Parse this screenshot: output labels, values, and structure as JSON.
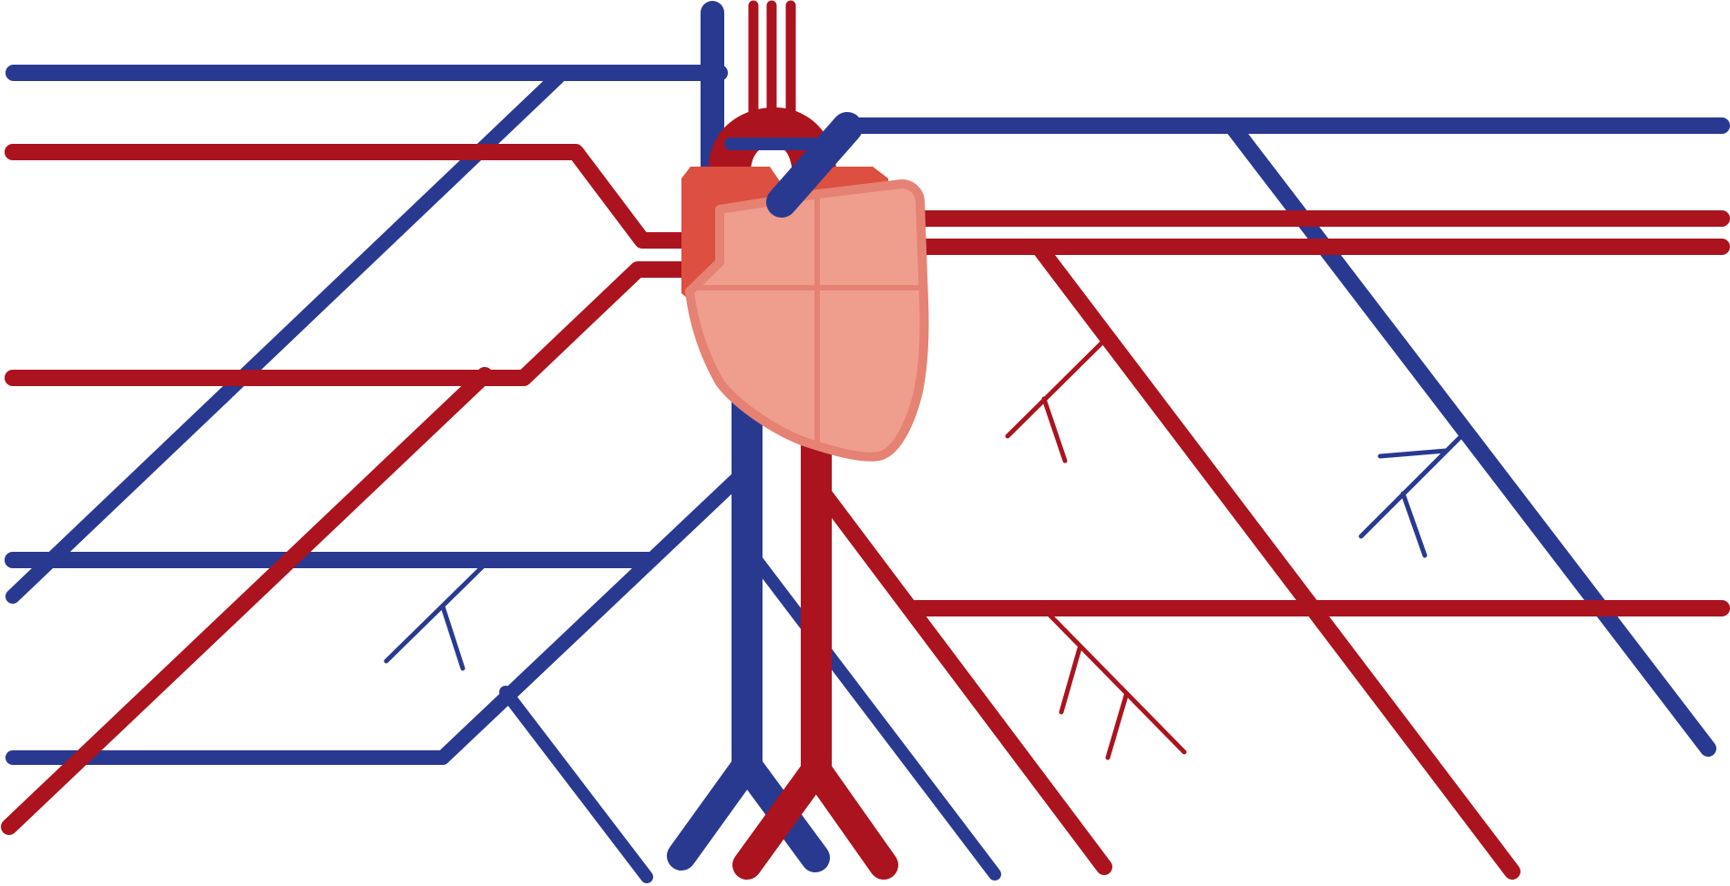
{
  "diagram": {
    "kind": "circulatory-system-schematic",
    "colors": {
      "vein": "#2a3990",
      "artery": "#ab131f",
      "heart_fill": "#ef9e8e",
      "heart_outline": "#e58273",
      "atrium": "#dd4f40",
      "background": "#ffffff"
    },
    "labels": []
  }
}
